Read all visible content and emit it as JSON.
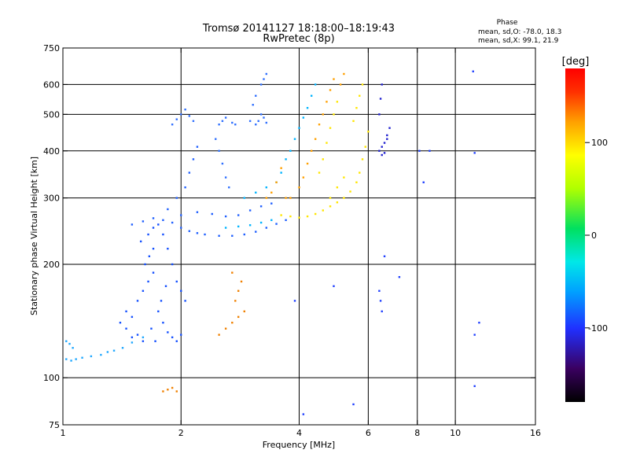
{
  "chart_data": {
    "type": "scatter",
    "title": "Tromsø 20141127 18:18:00–18:19:43",
    "subtitle": "RwPretec (8p)",
    "xlabel": "Frequency [MHz]",
    "ylabel": "Stationary phase Virtual Height [km]",
    "x_scale": "log",
    "y_scale": "log",
    "xlim": [
      1,
      16
    ],
    "ylim": [
      75,
      750
    ],
    "x_ticks": [
      1,
      2,
      4,
      6,
      8,
      10,
      16
    ],
    "y_ticks": [
      75,
      100,
      200,
      300,
      400,
      500,
      600,
      750
    ],
    "x_grid": [
      2,
      4,
      6,
      8,
      10
    ],
    "y_grid": [
      100,
      200,
      300,
      400,
      500,
      600
    ],
    "phase_box": {
      "heading": "Phase",
      "line_o": "mean, sd,O: -78.0, 18.3",
      "line_x": "mean, sd,X:  99.1, 21.9"
    },
    "colorbar": {
      "label": "[deg]",
      "range": [
        -180,
        180
      ],
      "ticks": [
        {
          "value": 100,
          "label": "100"
        },
        {
          "value": 0,
          "label": "0"
        },
        {
          "value": -100,
          "label": "-100"
        }
      ],
      "stops": [
        "#000000",
        "#3a0060",
        "#2030ff",
        "#00a0ff",
        "#00e8e8",
        "#00e060",
        "#b0ff00",
        "#ffff00",
        "#ffa000",
        "#ff3000",
        "#ff0000"
      ]
    },
    "series": [
      {
        "points": [
          [
            1.02,
            112
          ],
          [
            1.05,
            111
          ],
          [
            1.08,
            112
          ],
          [
            1.12,
            113
          ],
          [
            1.18,
            114
          ],
          [
            1.25,
            115
          ],
          [
            1.3,
            117
          ],
          [
            1.35,
            118
          ],
          [
            1.42,
            120
          ],
          [
            1.5,
            124
          ],
          [
            1.6,
            128
          ],
          [
            1.02,
            125
          ],
          [
            1.04,
            123
          ],
          [
            1.06,
            120
          ]
        ],
        "color": "#20a8ff"
      },
      {
        "points": [
          [
            1.4,
            140
          ],
          [
            1.45,
            135
          ],
          [
            1.5,
            128
          ],
          [
            1.55,
            130
          ],
          [
            1.6,
            125
          ],
          [
            1.5,
            145
          ],
          [
            1.45,
            150
          ],
          [
            1.55,
            160
          ],
          [
            1.6,
            170
          ],
          [
            1.65,
            180
          ],
          [
            1.7,
            190
          ],
          [
            1.62,
            200
          ],
          [
            1.66,
            210
          ],
          [
            1.7,
            220
          ],
          [
            1.58,
            230
          ],
          [
            1.65,
            240
          ],
          [
            1.7,
            250
          ],
          [
            1.75,
            255
          ],
          [
            1.8,
            240
          ],
          [
            1.85,
            220
          ],
          [
            1.9,
            200
          ],
          [
            1.95,
            180
          ],
          [
            2.0,
            170
          ],
          [
            2.05,
            160
          ],
          [
            1.75,
            150
          ],
          [
            1.8,
            140
          ],
          [
            1.85,
            132
          ],
          [
            1.9,
            128
          ],
          [
            1.95,
            125
          ],
          [
            2.0,
            130
          ],
          [
            1.68,
            135
          ],
          [
            1.72,
            125
          ],
          [
            1.78,
            160
          ],
          [
            1.83,
            175
          ]
        ],
        "color": "#1450ff"
      },
      {
        "points": [
          [
            1.5,
            255
          ],
          [
            1.6,
            260
          ],
          [
            1.7,
            265
          ],
          [
            1.8,
            262
          ],
          [
            1.9,
            258
          ],
          [
            2.0,
            250
          ],
          [
            2.1,
            245
          ],
          [
            2.2,
            242
          ],
          [
            2.3,
            240
          ],
          [
            2.5,
            238
          ],
          [
            2.7,
            238
          ],
          [
            2.9,
            240
          ],
          [
            3.1,
            244
          ],
          [
            3.3,
            250
          ],
          [
            3.5,
            256
          ],
          [
            3.7,
            262
          ],
          [
            2.0,
            270
          ],
          [
            2.2,
            275
          ],
          [
            2.4,
            272
          ],
          [
            2.6,
            268
          ],
          [
            2.8,
            270
          ],
          [
            3.0,
            278
          ],
          [
            3.2,
            285
          ],
          [
            3.4,
            290
          ],
          [
            1.85,
            280
          ],
          [
            1.95,
            300
          ],
          [
            2.05,
            320
          ],
          [
            2.1,
            350
          ],
          [
            2.15,
            380
          ],
          [
            2.2,
            410
          ]
        ],
        "color": "#2060ff"
      },
      {
        "points": [
          [
            1.9,
            470
          ],
          [
            1.95,
            485
          ],
          [
            2.0,
            500
          ],
          [
            2.05,
            515
          ],
          [
            2.1,
            495
          ],
          [
            2.15,
            480
          ],
          [
            2.5,
            470
          ],
          [
            2.55,
            480
          ],
          [
            2.6,
            490
          ],
          [
            2.7,
            475
          ],
          [
            2.75,
            470
          ],
          [
            3.1,
            470
          ],
          [
            3.15,
            480
          ],
          [
            3.2,
            500
          ],
          [
            3.25,
            490
          ],
          [
            3.3,
            475
          ],
          [
            2.45,
            430
          ],
          [
            2.5,
            400
          ],
          [
            2.55,
            370
          ],
          [
            2.6,
            340
          ],
          [
            2.65,
            320
          ],
          [
            3.0,
            480
          ],
          [
            3.05,
            530
          ],
          [
            3.1,
            560
          ],
          [
            3.2,
            600
          ],
          [
            3.25,
            620
          ],
          [
            3.3,
            640
          ]
        ],
        "color": "#3070ff"
      },
      {
        "points": [
          [
            2.6,
            250
          ],
          [
            2.8,
            252
          ],
          [
            3.0,
            254
          ],
          [
            3.2,
            258
          ],
          [
            3.4,
            262
          ],
          [
            2.9,
            300
          ],
          [
            3.1,
            310
          ],
          [
            3.3,
            320
          ],
          [
            3.5,
            330
          ],
          [
            3.6,
            350
          ],
          [
            3.7,
            380
          ],
          [
            3.8,
            400
          ],
          [
            3.9,
            430
          ],
          [
            4.0,
            460
          ],
          [
            4.1,
            490
          ],
          [
            4.2,
            520
          ],
          [
            4.3,
            560
          ],
          [
            4.4,
            600
          ]
        ],
        "color": "#00b4ff"
      },
      {
        "points": [
          [
            3.6,
            270
          ],
          [
            3.8,
            268
          ],
          [
            4.0,
            266
          ],
          [
            4.2,
            268
          ],
          [
            4.4,
            272
          ],
          [
            4.6,
            278
          ],
          [
            4.8,
            285
          ],
          [
            5.0,
            292
          ],
          [
            5.2,
            300
          ],
          [
            5.4,
            312
          ],
          [
            5.6,
            330
          ],
          [
            5.7,
            350
          ],
          [
            5.8,
            380
          ],
          [
            5.9,
            410
          ],
          [
            6.0,
            450
          ],
          [
            5.5,
            480
          ],
          [
            5.6,
            520
          ],
          [
            5.7,
            560
          ],
          [
            5.8,
            600
          ],
          [
            4.8,
            300
          ],
          [
            5.0,
            320
          ],
          [
            5.2,
            340
          ],
          [
            4.5,
            350
          ],
          [
            4.6,
            380
          ],
          [
            4.7,
            420
          ],
          [
            4.8,
            460
          ],
          [
            4.9,
            500
          ],
          [
            5.0,
            540
          ]
        ],
        "color": "#ffe600"
      },
      {
        "points": [
          [
            3.8,
            300
          ],
          [
            4.0,
            320
          ],
          [
            4.1,
            340
          ],
          [
            4.2,
            370
          ],
          [
            4.3,
            400
          ],
          [
            4.4,
            430
          ],
          [
            4.5,
            470
          ],
          [
            4.6,
            500
          ],
          [
            4.7,
            540
          ],
          [
            4.8,
            580
          ],
          [
            4.9,
            620
          ],
          [
            3.5,
            330
          ],
          [
            3.6,
            360
          ],
          [
            3.7,
            300
          ],
          [
            3.3,
            300
          ],
          [
            3.4,
            310
          ],
          [
            5.1,
            600
          ],
          [
            5.2,
            640
          ]
        ],
        "color": "#ffa000"
      },
      {
        "points": [
          [
            6.4,
            400
          ],
          [
            6.5,
            410
          ],
          [
            6.6,
            420
          ],
          [
            6.7,
            440
          ],
          [
            6.8,
            460
          ],
          [
            6.5,
            390
          ],
          [
            6.6,
            395
          ],
          [
            6.7,
            430
          ],
          [
            6.4,
            500
          ],
          [
            6.45,
            550
          ],
          [
            6.5,
            600
          ]
        ],
        "color": "#2020d0"
      },
      {
        "points": [
          [
            2.5,
            130
          ],
          [
            2.6,
            135
          ],
          [
            2.7,
            140
          ],
          [
            2.8,
            145
          ],
          [
            2.9,
            150
          ],
          [
            2.75,
            160
          ],
          [
            2.8,
            170
          ],
          [
            2.85,
            180
          ],
          [
            2.7,
            190
          ],
          [
            1.8,
            92
          ],
          [
            1.85,
            93
          ],
          [
            1.9,
            94
          ],
          [
            1.95,
            92
          ]
        ],
        "color": "#f08000"
      },
      {
        "points": [
          [
            4.1,
            80
          ],
          [
            5.5,
            85
          ],
          [
            6.4,
            170
          ],
          [
            6.45,
            160
          ],
          [
            6.5,
            150
          ],
          [
            8.1,
            400
          ],
          [
            8.3,
            330
          ],
          [
            8.6,
            400
          ],
          [
            11.1,
            650
          ],
          [
            11.2,
            395
          ],
          [
            11.5,
            140
          ],
          [
            11.2,
            95
          ],
          [
            11.2,
            130
          ],
          [
            4.9,
            175
          ],
          [
            6.6,
            210
          ],
          [
            7.2,
            185
          ],
          [
            3.9,
            160
          ]
        ],
        "color": "#2040ff"
      }
    ]
  }
}
